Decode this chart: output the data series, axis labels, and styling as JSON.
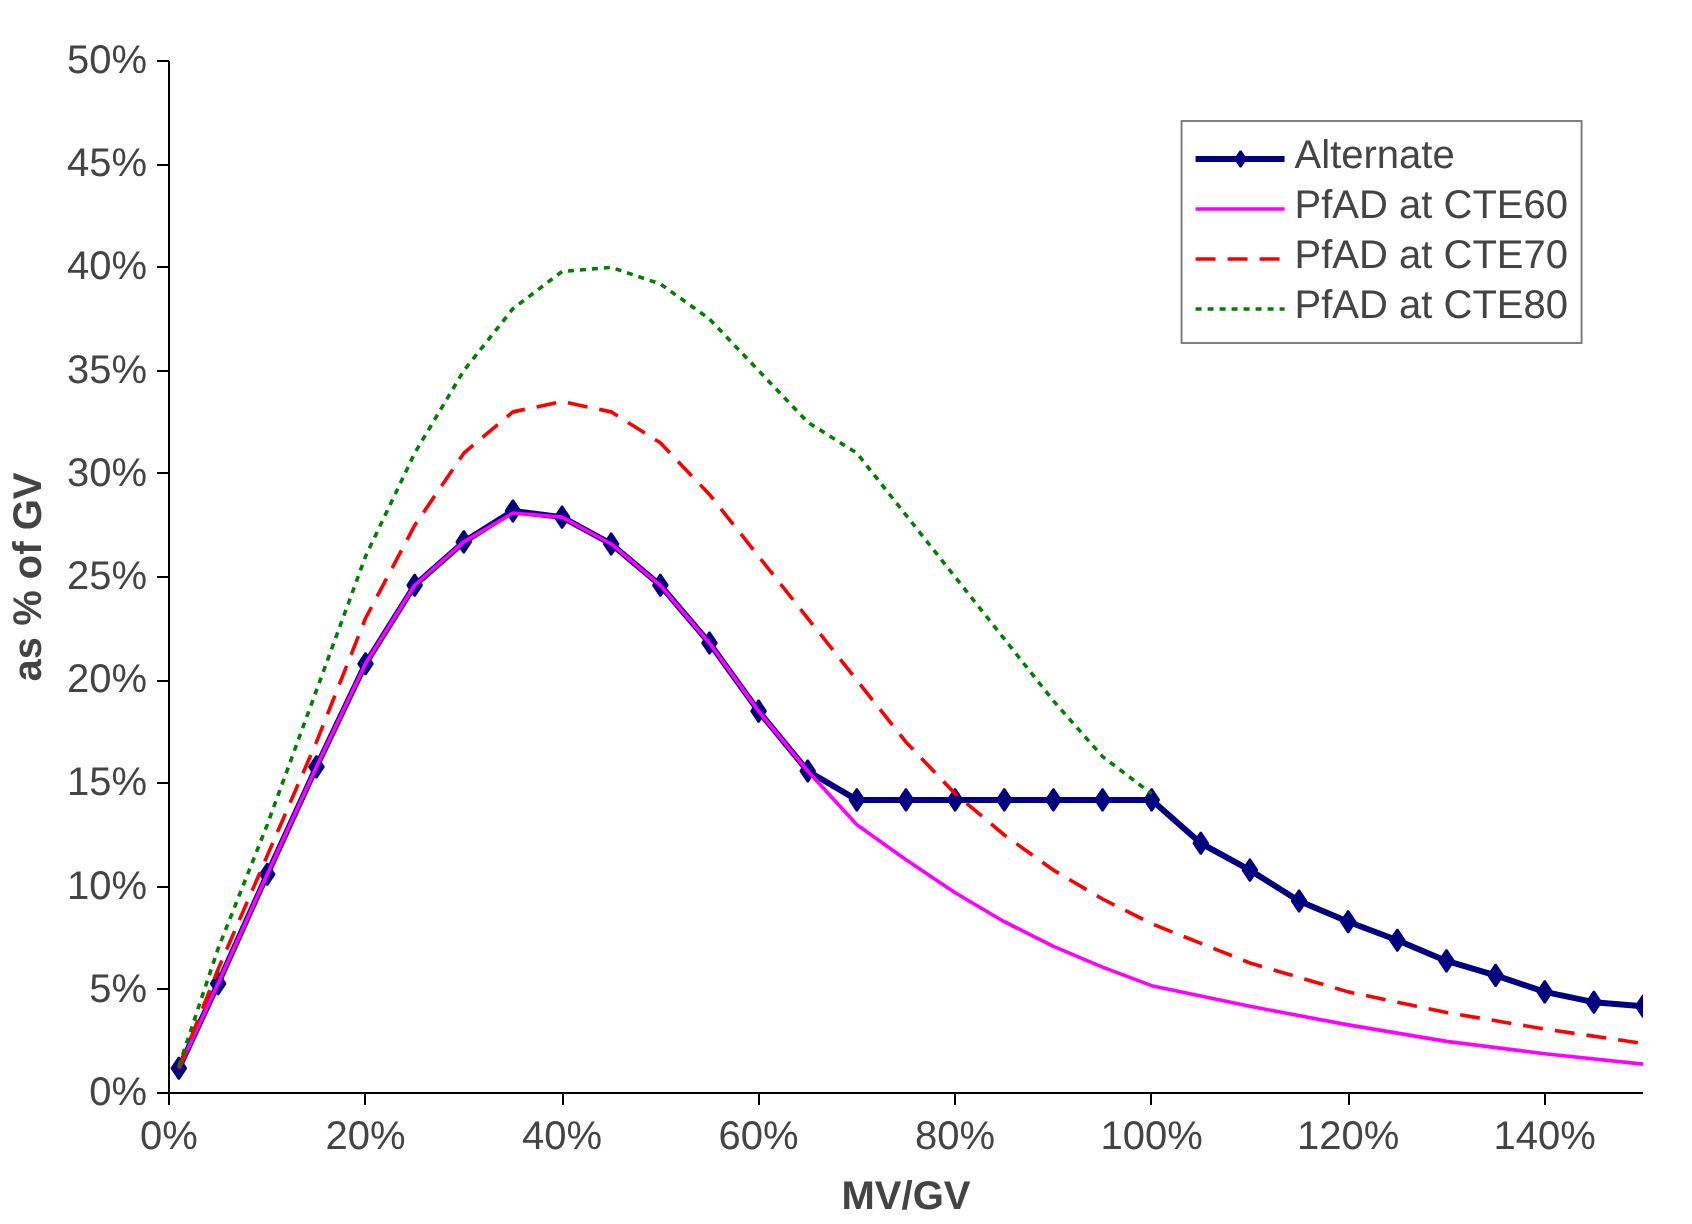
{
  "chart_data": {
    "type": "line",
    "xlabel": "MV/GV",
    "ylabel": "as % of GV",
    "xlim": [
      0,
      150
    ],
    "ylim": [
      0,
      50
    ],
    "xticks": [
      {
        "value": 0,
        "label": "0%"
      },
      {
        "value": 20,
        "label": "20%"
      },
      {
        "value": 40,
        "label": "40%"
      },
      {
        "value": 60,
        "label": "60%"
      },
      {
        "value": 80,
        "label": "80%"
      },
      {
        "value": 100,
        "label": "100%"
      },
      {
        "value": 120,
        "label": "120%"
      },
      {
        "value": 140,
        "label": "140%"
      }
    ],
    "yticks": [
      {
        "value": 0,
        "label": "0%"
      },
      {
        "value": 5,
        "label": "5%"
      },
      {
        "value": 10,
        "label": "10%"
      },
      {
        "value": 15,
        "label": "15%"
      },
      {
        "value": 20,
        "label": "20%"
      },
      {
        "value": 25,
        "label": "25%"
      },
      {
        "value": 30,
        "label": "30%"
      },
      {
        "value": 35,
        "label": "35%"
      },
      {
        "value": 40,
        "label": "40%"
      },
      {
        "value": 45,
        "label": "45%"
      },
      {
        "value": 50,
        "label": "50%"
      }
    ],
    "grid": false,
    "legend": "top right",
    "series": [
      {
        "name": "Alternate",
        "color": "#000080",
        "marker": "diamond",
        "line_style": "solid",
        "x": [
          1,
          5,
          10,
          15,
          20,
          25,
          30,
          35,
          40,
          45,
          50,
          55,
          60,
          65,
          70,
          75,
          80,
          85,
          90,
          95,
          100,
          105,
          110,
          115,
          120,
          125,
          130,
          135,
          140,
          145,
          150
        ],
        "values": [
          1.2,
          5.3,
          10.6,
          15.8,
          20.8,
          24.6,
          26.7,
          28.2,
          27.9,
          26.6,
          24.6,
          21.8,
          18.5,
          15.6,
          14.2,
          14.2,
          14.2,
          14.2,
          14.2,
          14.2,
          14.2,
          12.1,
          10.8,
          9.3,
          8.3,
          7.4,
          6.4,
          5.7,
          4.9,
          4.4,
          4.2
        ]
      },
      {
        "name": "PfAD at CTE60",
        "color": "#ff00ff",
        "marker": "none",
        "line_style": "solid",
        "x": [
          1,
          5,
          10,
          15,
          20,
          25,
          30,
          35,
          40,
          45,
          50,
          55,
          60,
          65,
          70,
          75,
          80,
          85,
          90,
          95,
          100,
          110,
          120,
          130,
          140,
          150
        ],
        "values": [
          1.2,
          5.3,
          10.6,
          15.8,
          20.8,
          24.6,
          26.7,
          28.1,
          27.9,
          26.6,
          24.6,
          21.8,
          18.5,
          15.6,
          13,
          11.3,
          9.7,
          8.3,
          7.1,
          6.1,
          5.2,
          4.2,
          3.3,
          2.5,
          1.9,
          1.4
        ]
      },
      {
        "name": "PfAD at CTE70",
        "color": "#ff0000",
        "marker": "none",
        "line_style": "dashed",
        "x": [
          1,
          5,
          10,
          15,
          20,
          25,
          30,
          35,
          40,
          45,
          50,
          55,
          60,
          65,
          70,
          75,
          80,
          85,
          90,
          95,
          100,
          110,
          120,
          130,
          140,
          150
        ],
        "values": [
          1.2,
          6,
          11.5,
          17,
          23,
          27.5,
          31,
          33,
          33.5,
          33,
          31.5,
          29,
          26,
          23,
          20,
          17,
          14.5,
          12.5,
          10.8,
          9.4,
          8.2,
          6.3,
          4.9,
          3.9,
          3.1,
          2.4
        ]
      },
      {
        "name": "PfAD at CTE80",
        "color": "#008000",
        "marker": "none",
        "line_style": "dotted",
        "x": [
          1,
          5,
          10,
          15,
          20,
          25,
          30,
          35,
          40,
          45,
          50,
          55,
          60,
          65,
          70,
          75,
          80,
          85,
          90,
          95,
          100
        ],
        "values": [
          1.3,
          7,
          13,
          19.5,
          26,
          31,
          35,
          38,
          39.8,
          40,
          39.2,
          37.5,
          35,
          32.5,
          31,
          28,
          25,
          22,
          19,
          16.3,
          14.5
        ]
      }
    ]
  }
}
